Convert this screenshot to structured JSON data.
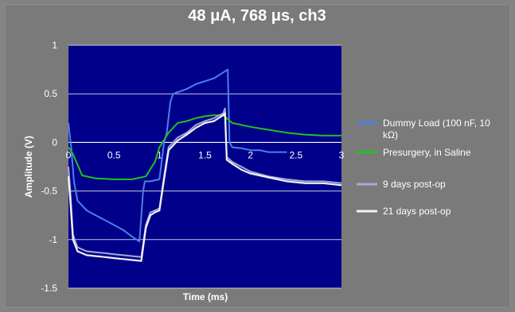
{
  "chart_data": {
    "type": "line",
    "title": "48 μA, 768 μs, ch3",
    "xlabel": "Time (ms)",
    "ylabel": "Amplitude (V)",
    "xlim": [
      0,
      3
    ],
    "ylim": [
      -1.5,
      1
    ],
    "xticks": [
      "0",
      "0.5",
      "1",
      "1.5",
      "2",
      "2.5",
      "3"
    ],
    "yticks": [
      "1",
      "0.5",
      "0",
      "-0.5",
      "-1",
      "-1.5"
    ],
    "grid": "horizontal",
    "legend_position": "right",
    "plot_background": "#00008b",
    "series": [
      {
        "name": "Dummy Load (100 nF, 10 kΩ)",
        "color": "#4f7fe6",
        "x": [
          0.0,
          0.03,
          0.06,
          0.1,
          0.2,
          0.3,
          0.4,
          0.5,
          0.6,
          0.7,
          0.78,
          0.82,
          0.84,
          0.9,
          1.0,
          1.05,
          1.08,
          1.12,
          1.15,
          1.3,
          1.4,
          1.5,
          1.6,
          1.7,
          1.75,
          1.77,
          1.8,
          1.9,
          2.0,
          2.1,
          2.2,
          2.3,
          2.4
        ],
        "y": [
          0.2,
          -0.05,
          -0.4,
          -0.6,
          -0.7,
          -0.75,
          -0.8,
          -0.85,
          -0.9,
          -0.97,
          -1.02,
          -0.5,
          -0.4,
          -0.4,
          -0.38,
          0.0,
          0.1,
          0.42,
          0.5,
          0.55,
          0.6,
          0.63,
          0.66,
          0.72,
          0.75,
          0.0,
          -0.05,
          -0.06,
          -0.08,
          -0.08,
          -0.1,
          -0.1,
          -0.1
        ]
      },
      {
        "name": "Presurgery, in Saline",
        "color": "#21c21f",
        "x": [
          0.0,
          0.05,
          0.15,
          0.3,
          0.5,
          0.7,
          0.85,
          0.95,
          1.0,
          1.1,
          1.2,
          1.3,
          1.4,
          1.5,
          1.6,
          1.7,
          1.8,
          2.0,
          2.2,
          2.4,
          2.6,
          2.8,
          3.0
        ],
        "y": [
          -0.05,
          -0.12,
          -0.34,
          -0.37,
          -0.38,
          -0.38,
          -0.35,
          -0.2,
          -0.05,
          0.1,
          0.2,
          0.22,
          0.25,
          0.27,
          0.28,
          0.28,
          0.2,
          0.16,
          0.13,
          0.1,
          0.08,
          0.07,
          0.07
        ]
      },
      {
        "name": "9 days post-op",
        "color": "#a8aad8",
        "x": [
          0.0,
          0.02,
          0.05,
          0.1,
          0.2,
          0.3,
          0.4,
          0.5,
          0.6,
          0.7,
          0.8,
          0.85,
          0.9,
          0.95,
          1.0,
          1.05,
          1.1,
          1.2,
          1.3,
          1.4,
          1.5,
          1.6,
          1.7,
          1.72,
          1.74,
          1.8,
          1.9,
          2.0,
          2.2,
          2.4,
          2.6,
          2.8,
          3.0
        ],
        "y": [
          -0.25,
          -0.5,
          -0.95,
          -1.08,
          -1.12,
          -1.13,
          -1.14,
          -1.15,
          -1.16,
          -1.17,
          -1.18,
          -0.85,
          -0.72,
          -0.7,
          -0.68,
          -0.35,
          -0.05,
          0.05,
          0.1,
          0.18,
          0.22,
          0.25,
          0.3,
          0.35,
          -0.15,
          -0.2,
          -0.25,
          -0.3,
          -0.35,
          -0.38,
          -0.4,
          -0.4,
          -0.42
        ]
      },
      {
        "name": "21 days post-op",
        "color": "#f2f2f2",
        "x": [
          0.0,
          0.02,
          0.05,
          0.1,
          0.2,
          0.3,
          0.4,
          0.5,
          0.6,
          0.7,
          0.8,
          0.85,
          0.9,
          0.95,
          1.0,
          1.05,
          1.1,
          1.2,
          1.3,
          1.4,
          1.5,
          1.6,
          1.7,
          1.72,
          1.74,
          1.8,
          1.9,
          2.0,
          2.2,
          2.4,
          2.6,
          2.8,
          3.0
        ],
        "y": [
          -0.35,
          -0.6,
          -1.0,
          -1.12,
          -1.16,
          -1.17,
          -1.18,
          -1.19,
          -1.2,
          -1.21,
          -1.22,
          -0.88,
          -0.75,
          -0.72,
          -0.7,
          -0.38,
          -0.08,
          0.02,
          0.08,
          0.15,
          0.2,
          0.22,
          0.28,
          0.3,
          -0.18,
          -0.22,
          -0.28,
          -0.32,
          -0.36,
          -0.4,
          -0.42,
          -0.42,
          -0.44
        ]
      }
    ],
    "legend": [
      {
        "line1": "Dummy Load (100 nF, 10",
        "line2": "kΩ)",
        "color": "#4f7fe6"
      },
      {
        "line1": "Presurgery, in Saline",
        "line2": "",
        "color": "#21c21f"
      },
      {
        "line1": "9 days post-op",
        "line2": "",
        "color": "#a8aad8"
      },
      {
        "line1": "21 days post-op",
        "line2": "",
        "color": "#f2f2f2"
      }
    ]
  }
}
